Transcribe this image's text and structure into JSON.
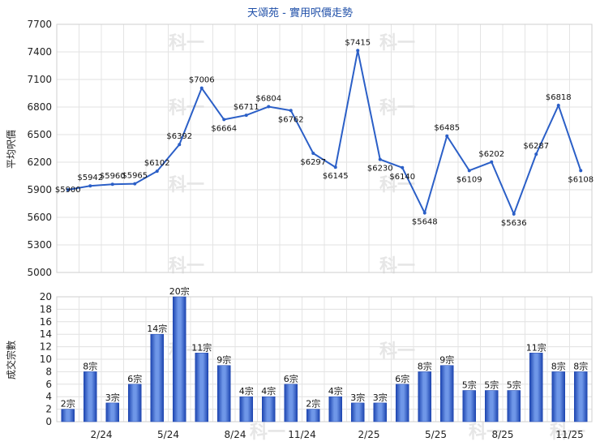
{
  "chart_data": [
    {
      "type": "line",
      "title": "天頌苑 - 實用呎價走勢",
      "ylabel": "平均呎價",
      "ylim": [
        5000,
        7700
      ],
      "yticks": [
        5000,
        5300,
        5600,
        5900,
        6200,
        6500,
        6800,
        7100,
        7400,
        7700
      ],
      "x_labels": [
        "2/24",
        "5/24",
        "8/24",
        "11/24",
        "2/25",
        "5/25",
        "8/25",
        "11/25"
      ],
      "series": [
        {
          "color": "#2b5fc7",
          "values": [
            5900,
            5942,
            5960,
            5965,
            6102,
            6392,
            7006,
            6664,
            6711,
            6804,
            6762,
            6297,
            6145,
            7415,
            6230,
            6140,
            5648,
            6485,
            6109,
            6202,
            5636,
            6287,
            6818,
            6108
          ],
          "labels": [
            "$5900",
            "$5942",
            "$5960",
            "$5965",
            "$6102",
            "$6392",
            "$7006",
            "$6664",
            "$6711",
            "$6804",
            "$6762",
            "$6297",
            "$6145",
            "$7415",
            "$6230",
            "$6140",
            "$5648",
            "$6485",
            "$6109",
            "$6202",
            "$5636",
            "$6287",
            "$6818",
            "$6108"
          ]
        }
      ],
      "grid": true
    },
    {
      "type": "bar",
      "ylabel": "成交宗數",
      "ylim": [
        0,
        20
      ],
      "yticks": [
        0,
        2,
        4,
        6,
        8,
        10,
        12,
        14,
        16,
        18,
        20
      ],
      "x_labels": [
        "2/24",
        "5/24",
        "8/24",
        "11/24",
        "2/25",
        "5/25",
        "8/25",
        "11/25"
      ],
      "series": [
        {
          "color": "#2b5fc7",
          "values": [
            2,
            8,
            3,
            6,
            14,
            20,
            11,
            9,
            4,
            4,
            6,
            2,
            4,
            3,
            3,
            6,
            8,
            9,
            5,
            5,
            5,
            11,
            8,
            8
          ],
          "labels": [
            "2宗",
            "8宗",
            "3宗",
            "6宗",
            "14宗",
            "20宗",
            "11宗",
            "9宗",
            "4宗",
            "4宗",
            "6宗",
            "2宗",
            "4宗",
            "3宗",
            "3宗",
            "6宗",
            "8宗",
            "9宗",
            "5宗",
            "5宗",
            "5宗",
            "11宗",
            "8宗",
            "8宗"
          ]
        }
      ],
      "grid": true
    }
  ],
  "watermark": "科一"
}
